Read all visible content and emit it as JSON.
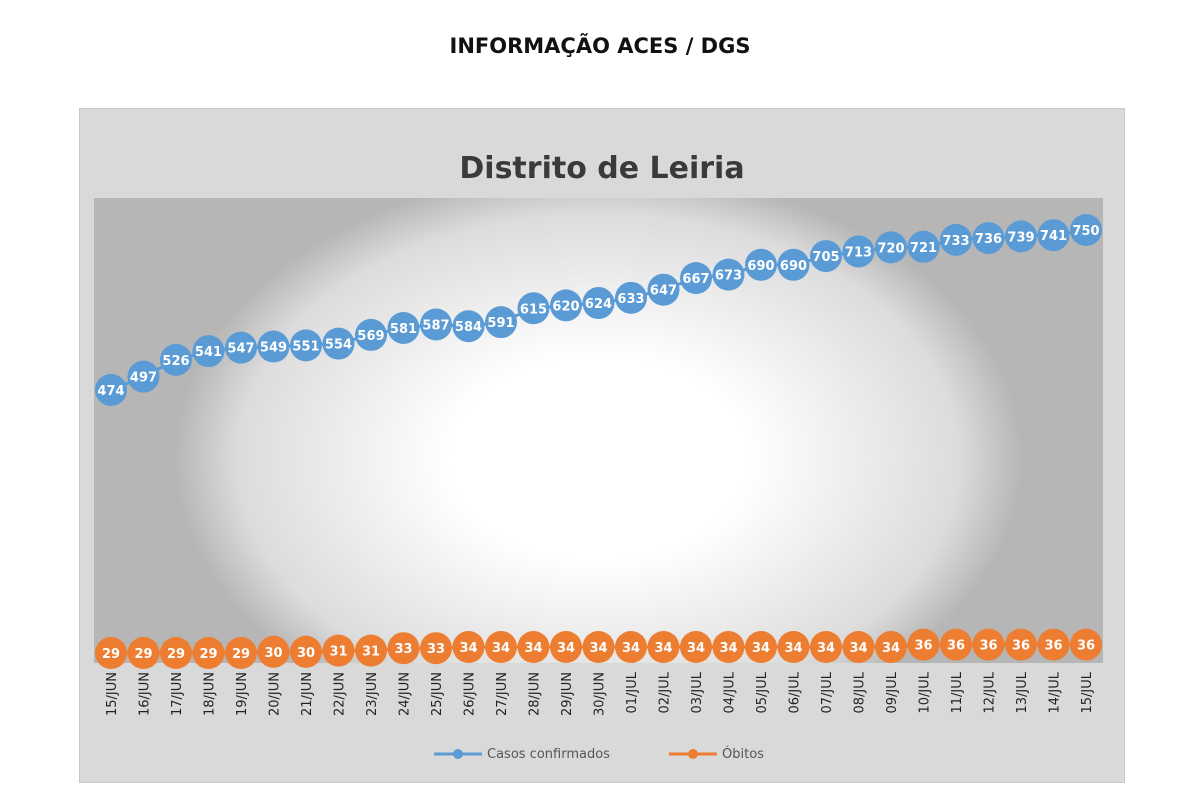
{
  "header": {
    "title": "INFORMAÇÃO ACES / DGS"
  },
  "chart_data": {
    "type": "line",
    "title": "Distrito de Leiria",
    "xlabel": "",
    "ylabel": "",
    "ylim": [
      0,
      800
    ],
    "grid": false,
    "legend_position": "bottom",
    "categories": [
      "15/JUN",
      "16/JUN",
      "17/JUN",
      "18/JUN",
      "19/JUN",
      "20/JUN",
      "21/JUN",
      "22/JUN",
      "23/JUN",
      "24/JUN",
      "25/JUN",
      "26/JUN",
      "27/JUN",
      "28/JUN",
      "29/JUN",
      "30/JUN",
      "01/JUL",
      "02/JUL",
      "03/JUL",
      "04/JUL",
      "05/JUL",
      "06/JUL",
      "07/JUL",
      "08/JUL",
      "09/JUL",
      "10/JUL",
      "11/JUL",
      "12/JUL",
      "13/JUL",
      "14/JUL",
      "15/JUL"
    ],
    "series": [
      {
        "name": "Casos confirmados",
        "color": "#5b9bd5",
        "values": [
          474,
          497,
          526,
          541,
          547,
          549,
          551,
          554,
          569,
          581,
          587,
          584,
          591,
          615,
          620,
          624,
          633,
          647,
          667,
          673,
          690,
          690,
          705,
          713,
          720,
          721,
          733,
          736,
          739,
          741,
          750
        ]
      },
      {
        "name": "Óbitos",
        "color": "#ed7d31",
        "values": [
          29,
          29,
          29,
          29,
          29,
          30,
          30,
          31,
          31,
          33,
          33,
          34,
          34,
          34,
          34,
          34,
          34,
          34,
          34,
          34,
          34,
          34,
          34,
          34,
          34,
          36,
          36,
          36,
          36,
          36,
          36
        ]
      }
    ]
  }
}
